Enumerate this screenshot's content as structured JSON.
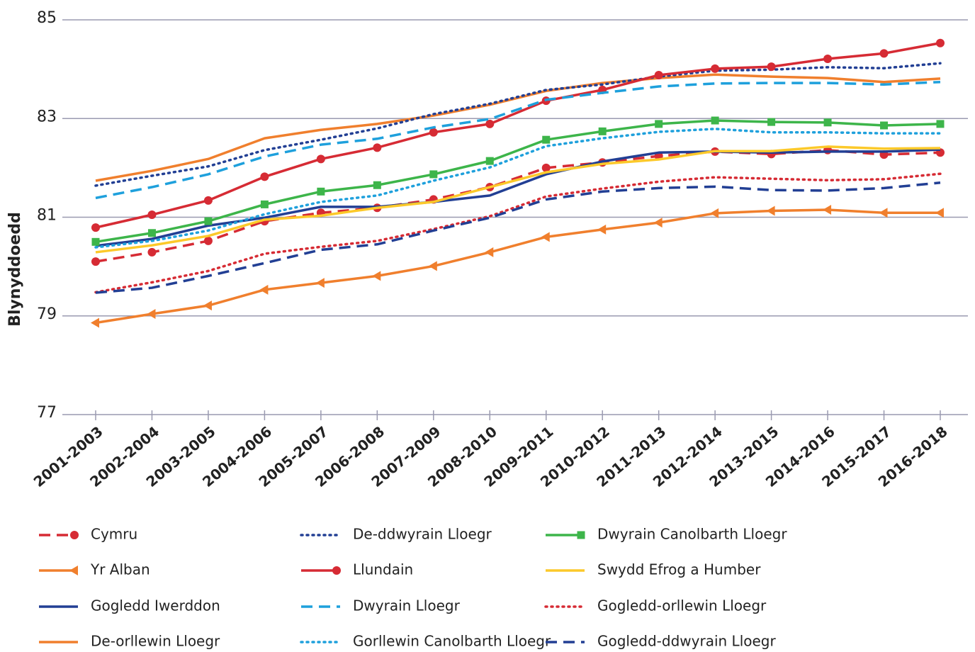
{
  "chart_data": {
    "type": "line",
    "y_label": "Blynyddoedd",
    "categories": [
      "2001-2003",
      "2002-2004",
      "2003-2005",
      "2004-2006",
      "2005-2007",
      "2006-2008",
      "2007-2009",
      "2008-2010",
      "2009-2011",
      "2010-2012",
      "2011-2013",
      "2012-2014",
      "2013-2015",
      "2014-2016",
      "2015-2017",
      "2016-2018"
    ],
    "ylim": [
      77,
      85
    ],
    "yticks": [
      77,
      79,
      81,
      83,
      85
    ],
    "grid": true,
    "series": [
      {
        "name": "Cymru",
        "color": "#d62b34",
        "dash": "dashed",
        "marker": "circle",
        "values": [
          80.1,
          80.29,
          80.52,
          80.92,
          81.09,
          81.19,
          81.36,
          81.61,
          82.0,
          82.11,
          82.24,
          82.33,
          82.28,
          82.36,
          82.27,
          82.31
        ]
      },
      {
        "name": "Yr Alban",
        "color": "#f07f2d",
        "dash": "solid",
        "marker": "triangle",
        "values": [
          78.86,
          79.04,
          79.21,
          79.53,
          79.67,
          79.81,
          80.01,
          80.29,
          80.6,
          80.75,
          80.89,
          81.08,
          81.13,
          81.15,
          81.09,
          81.09
        ]
      },
      {
        "name": "Gogledd Iwerddon",
        "color": "#223f94",
        "dash": "solid",
        "marker": null,
        "values": [
          80.42,
          80.56,
          80.83,
          80.99,
          81.21,
          81.21,
          81.31,
          81.44,
          81.87,
          82.13,
          82.31,
          82.33,
          82.31,
          82.33,
          82.33,
          82.37
        ]
      },
      {
        "name": "De-orllewin Lloegr",
        "color": "#f07f2d",
        "dash": "solid",
        "marker": null,
        "values": [
          81.74,
          81.94,
          82.18,
          82.6,
          82.77,
          82.89,
          83.06,
          83.28,
          83.56,
          83.72,
          83.82,
          83.89,
          83.85,
          83.82,
          83.74,
          83.81
        ]
      },
      {
        "name": "De-ddwyrain Lloegr",
        "color": "#223f94",
        "dash": "dotted",
        "marker": null,
        "values": [
          81.64,
          81.84,
          82.03,
          82.36,
          82.57,
          82.8,
          83.09,
          83.3,
          83.58,
          83.69,
          83.85,
          83.97,
          83.99,
          84.04,
          84.02,
          84.12
        ]
      },
      {
        "name": "Llundain",
        "color": "#d62b34",
        "dash": "solid",
        "marker": "circle",
        "values": [
          80.79,
          81.05,
          81.34,
          81.82,
          82.18,
          82.41,
          82.72,
          82.89,
          83.36,
          83.58,
          83.88,
          84.01,
          84.05,
          84.21,
          84.32,
          84.53
        ]
      },
      {
        "name": "Dwyrain Lloegr",
        "color": "#1ea0dc",
        "dash": "dashed",
        "marker": null,
        "values": [
          81.39,
          81.61,
          81.87,
          82.23,
          82.47,
          82.59,
          82.82,
          82.99,
          83.38,
          83.52,
          83.65,
          83.71,
          83.72,
          83.72,
          83.69,
          83.74
        ]
      },
      {
        "name": "Gorllewin Canolbarth Lloegr",
        "color": "#1ea0dc",
        "dash": "dotted",
        "marker": null,
        "values": [
          80.39,
          80.52,
          80.73,
          81.06,
          81.31,
          81.44,
          81.74,
          82.01,
          82.44,
          82.6,
          82.73,
          82.79,
          82.72,
          82.72,
          82.7,
          82.7
        ]
      },
      {
        "name": "Dwyrain Canolbarth Lloegr",
        "color": "#3db54a",
        "dash": "solid",
        "marker": "square",
        "values": [
          80.5,
          80.68,
          80.92,
          81.26,
          81.52,
          81.65,
          81.87,
          82.14,
          82.57,
          82.74,
          82.89,
          82.96,
          82.93,
          82.92,
          82.86,
          82.89
        ]
      },
      {
        "name": "Swydd Efrog a Humber",
        "color": "#fcc92a",
        "dash": "solid",
        "marker": null,
        "values": [
          80.29,
          80.43,
          80.62,
          80.95,
          81.03,
          81.19,
          81.31,
          81.61,
          81.91,
          82.08,
          82.17,
          82.34,
          82.34,
          82.43,
          82.39,
          82.4
        ]
      },
      {
        "name": "Gogledd-orllewin Lloegr",
        "color": "#d62b34",
        "dash": "dotted",
        "marker": null,
        "values": [
          79.48,
          79.68,
          79.91,
          80.26,
          80.4,
          80.52,
          80.76,
          81.02,
          81.42,
          81.58,
          81.72,
          81.81,
          81.78,
          81.75,
          81.77,
          81.88
        ]
      },
      {
        "name": "Gogledd-ddwyrain Lloegr",
        "color": "#223f94",
        "dash": "dashed",
        "marker": null,
        "values": [
          79.47,
          79.57,
          79.81,
          80.07,
          80.34,
          80.45,
          80.73,
          80.99,
          81.36,
          81.52,
          81.59,
          81.62,
          81.55,
          81.54,
          81.59,
          81.7
        ]
      }
    ]
  }
}
